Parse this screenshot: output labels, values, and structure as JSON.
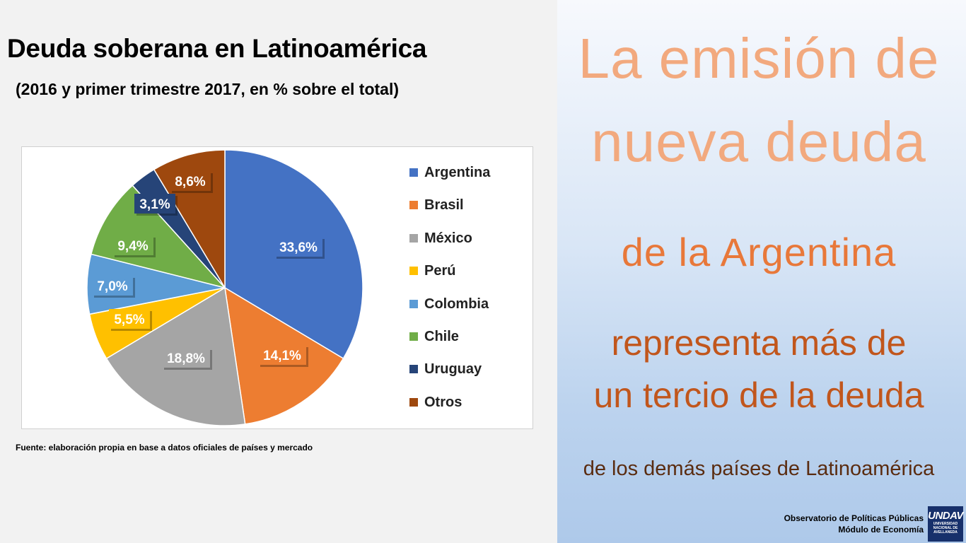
{
  "slide": {
    "title": "Deuda soberana en Latinoamérica",
    "subtitle": "(2016 y primer trimestre 2017, en % sobre el total)",
    "source": "Fuente: elaboración propia en base a datos oficiales de países y mercado"
  },
  "chart_data": {
    "type": "pie",
    "title": "Deuda soberana en Latinoamérica",
    "subtitle": "(2016 y primer trimestre 2017, en % sobre el total)",
    "legend_position": "right",
    "slices": [
      {
        "name": "Argentina",
        "value": 33.6,
        "label": "33,6%",
        "color": "#4472c4"
      },
      {
        "name": "Brasil",
        "value": 14.1,
        "label": "14,1%",
        "color": "#ed7d31"
      },
      {
        "name": "México",
        "value": 18.8,
        "label": "18,8%",
        "color": "#a5a5a5"
      },
      {
        "name": "Perú",
        "value": 5.5,
        "label": "5,5%",
        "color": "#ffc000"
      },
      {
        "name": "Colombia",
        "value": 7.0,
        "label": "7,0%",
        "color": "#5b9bd5"
      },
      {
        "name": "Chile",
        "value": 9.4,
        "label": "9,4%",
        "color": "#70ad47"
      },
      {
        "name": "Uruguay",
        "value": 3.1,
        "label": "3,1%",
        "color": "#264478"
      },
      {
        "name": "Otros",
        "value": 8.6,
        "label": "8,6%",
        "color": "#9e480e"
      }
    ]
  },
  "message": {
    "line1": "La emisión de",
    "line2": "nueva deuda",
    "line3": "de la Argentina",
    "line4": "representa más de",
    "line5": "un tercio de la deuda",
    "line6": "de los demás países de Latinoamérica"
  },
  "footer": {
    "org_line1": "Observatorio de Políticas Públicas",
    "org_line2": "Módulo de Economía",
    "logo_mark": "UNDAV",
    "logo_text1": "UNIVERSIDAD",
    "logo_text2": "NACIONAL DE",
    "logo_text3": "AVELLANEDA"
  }
}
